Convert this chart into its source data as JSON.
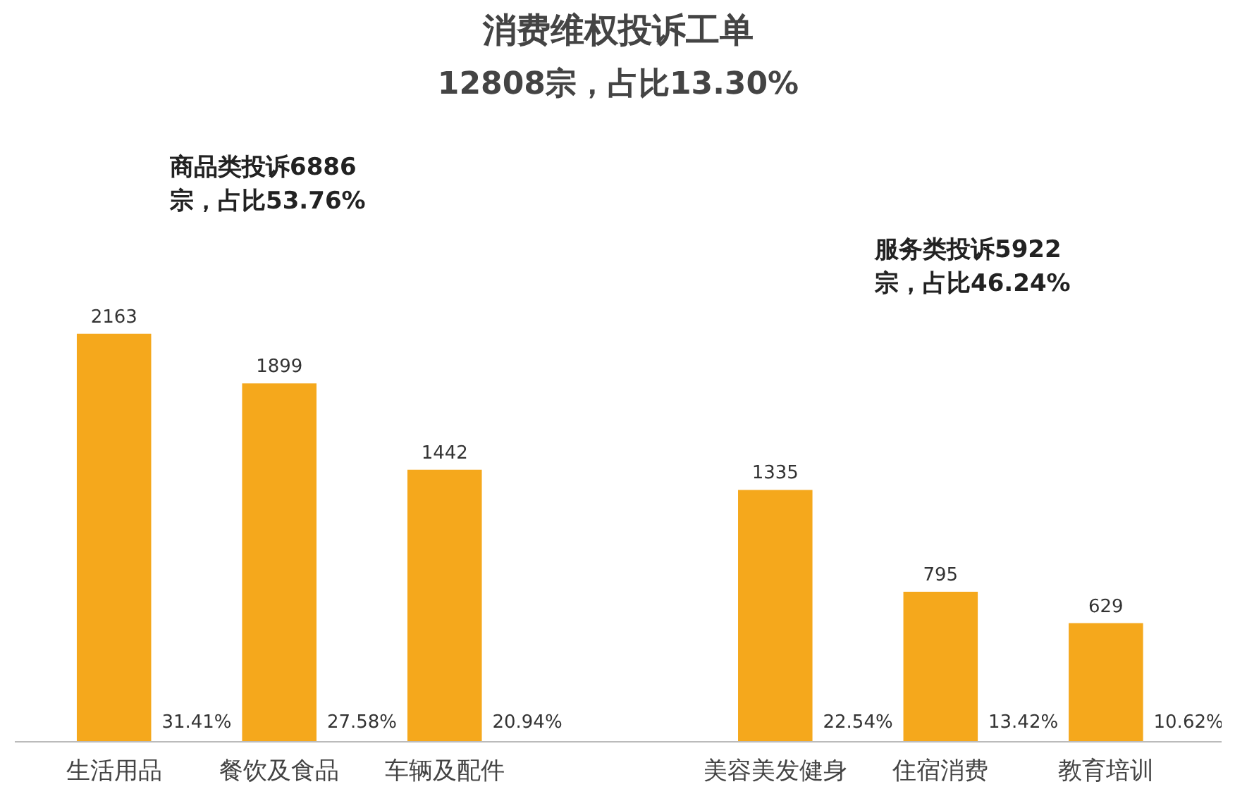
{
  "chart_data": {
    "type": "bar",
    "title": "消费维权投诉工单",
    "subtitle": "12808宗，占比13.30%",
    "categories": [
      "生活用品",
      "餐饮及食品",
      "车辆及配件",
      null,
      "美容美发健身",
      "住宿消费",
      "教育培训"
    ],
    "values": [
      2163,
      1899,
      1442,
      null,
      1335,
      795,
      629
    ],
    "color": "#f5a81c",
    "data_labels": true,
    "grid": false,
    "annotations": [
      "商品类投诉6886\n宗，占比53.76%",
      "服务类投诉5922\n宗，占比46.24%",
      "31.41%",
      "27.58%",
      "20.94%",
      "22.54%",
      "13.42%",
      "10.62%"
    ]
  }
}
